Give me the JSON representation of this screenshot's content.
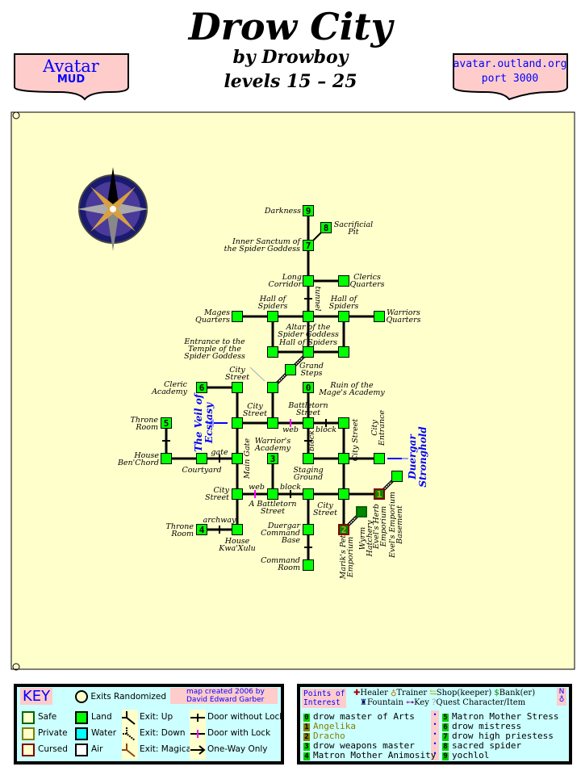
{
  "header": {
    "title": "Drow City",
    "author": "by Drowboy",
    "levels": "levels 15 – 25",
    "left_badge": {
      "line1": "Avatar",
      "line2": "MUD"
    },
    "right_badge": {
      "line1": "avatar.outland.org",
      "line2": "port 3000"
    }
  },
  "colors": {
    "parchment": "#ffffcc",
    "land": "#00ff00",
    "water": "#00ffff",
    "key_bg": "#ccffff",
    "badge_bg": "#ffcccc",
    "link": "#0000ff",
    "lock": "#ff00ff"
  },
  "map": {
    "rooms": [
      {
        "id": "darkness",
        "number": "9"
      },
      {
        "id": "sacrificial-pit",
        "number": "8"
      },
      {
        "id": "inner-sanctum",
        "number": "7"
      },
      {
        "id": "long-corridor"
      },
      {
        "id": "clerics-quarters"
      },
      {
        "id": "mages-quarters"
      },
      {
        "id": "hall-of-spiders-left"
      },
      {
        "id": "altar"
      },
      {
        "id": "hall-of-spiders-right"
      },
      {
        "id": "warriors-quarters"
      },
      {
        "id": "hall-sw"
      },
      {
        "id": "hall-of-spiders-center"
      },
      {
        "id": "hall-se"
      },
      {
        "id": "grand-steps"
      },
      {
        "id": "temple-entrance"
      },
      {
        "id": "ruin",
        "number": "0"
      },
      {
        "id": "cleric-academy",
        "number": "6"
      },
      {
        "id": "city-street-n"
      },
      {
        "id": "throne-room-5",
        "number": "5"
      },
      {
        "id": "city-street-w"
      },
      {
        "id": "city-street-c"
      },
      {
        "id": "battletorn-street"
      },
      {
        "id": "city-street-e"
      },
      {
        "id": "house-benchord"
      },
      {
        "id": "courtyard"
      },
      {
        "id": "main-gate"
      },
      {
        "id": "warriors-academy",
        "number": "3"
      },
      {
        "id": "staging-ground"
      },
      {
        "id": "city-street-east"
      },
      {
        "id": "city-entrance"
      },
      {
        "id": "evels-basement"
      },
      {
        "id": "city-street-sw"
      },
      {
        "id": "a-battletorn-street"
      },
      {
        "id": "street-s1"
      },
      {
        "id": "street-s2"
      },
      {
        "id": "evels-herb",
        "number": "1",
        "zone": "cursed"
      },
      {
        "id": "wyrm-hatchery",
        "zone": "safe"
      },
      {
        "id": "mariks-pet",
        "number": "2",
        "zone": "cursed"
      },
      {
        "id": "throne-room-4",
        "number": "4"
      },
      {
        "id": "house-kwaxulu"
      },
      {
        "id": "duergar-command-base"
      },
      {
        "id": "command-room"
      }
    ],
    "labels": [
      {
        "id": "darkness",
        "lines": [
          "Darkness"
        ]
      },
      {
        "id": "sacrificial-pit",
        "lines": [
          "Sacrificial",
          "Pit"
        ]
      },
      {
        "id": "inner-sanctum",
        "lines": [
          "Inner Sanctum of",
          "the Spider Goddess"
        ]
      },
      {
        "id": "long-corridor",
        "lines": [
          "Long",
          "Corridor"
        ]
      },
      {
        "id": "clerics-quarters",
        "lines": [
          "Clerics",
          "Quarters"
        ]
      },
      {
        "id": "hall-l",
        "lines": [
          "Hall of",
          "Spiders"
        ]
      },
      {
        "id": "hall-r",
        "lines": [
          "Hall of",
          "Spiders"
        ]
      },
      {
        "id": "mages-quarters",
        "lines": [
          "Mages",
          "Quarters"
        ]
      },
      {
        "id": "warriors-quarters",
        "lines": [
          "Warriors",
          "Quarters"
        ]
      },
      {
        "id": "altar",
        "lines": [
          "Altar of the",
          "Spider Goddess"
        ]
      },
      {
        "id": "hall-c",
        "lines": [
          "Hall of Spiders"
        ]
      },
      {
        "id": "temple-entrance",
        "lines": [
          "Entrance to the",
          "Temple of the",
          "Spider Goddess"
        ]
      },
      {
        "id": "grand-steps",
        "lines": [
          "Grand",
          "Steps"
        ]
      },
      {
        "id": "ruin",
        "lines": [
          "Ruin of the",
          "Mage's Academy"
        ]
      },
      {
        "id": "city-street-n",
        "lines": [
          "City",
          "Street"
        ]
      },
      {
        "id": "cleric-academy",
        "lines": [
          "Cleric",
          "Academy"
        ]
      },
      {
        "id": "city-street-c",
        "lines": [
          "City",
          "Street"
        ]
      },
      {
        "id": "battletorn-street",
        "lines": [
          "Battletorn",
          "Street"
        ]
      },
      {
        "id": "throne-room-5",
        "lines": [
          "Throne",
          "Room"
        ]
      },
      {
        "id": "web-1",
        "lines": [
          "web"
        ]
      },
      {
        "id": "block-1",
        "lines": [
          "block"
        ]
      },
      {
        "id": "warriors-academy",
        "lines": [
          "Warrior's",
          "Academy"
        ]
      },
      {
        "id": "gate",
        "lines": [
          "gate"
        ]
      },
      {
        "id": "house-benchord",
        "lines": [
          "House",
          "Ben'Chord"
        ]
      },
      {
        "id": "courtyard",
        "lines": [
          "Courtyard"
        ]
      },
      {
        "id": "staging-ground",
        "lines": [
          "Staging",
          "Ground"
        ]
      },
      {
        "id": "city-street-sw",
        "lines": [
          "City",
          "Street"
        ]
      },
      {
        "id": "web-2",
        "lines": [
          "web"
        ]
      },
      {
        "id": "block-2",
        "lines": [
          "block"
        ]
      },
      {
        "id": "a-battletorn-street",
        "lines": [
          "A Battletorn",
          "Street"
        ]
      },
      {
        "id": "city-street-s",
        "lines": [
          "City",
          "Street"
        ]
      },
      {
        "id": "throne-room-4",
        "lines": [
          "Throne",
          "Room"
        ]
      },
      {
        "id": "archway",
        "lines": [
          "archway"
        ]
      },
      {
        "id": "house-kwaxulu",
        "lines": [
          "House",
          "Kwa'Xulu"
        ]
      },
      {
        "id": "duergar-command-base",
        "lines": [
          "Duergar",
          "Command",
          "Base"
        ]
      },
      {
        "id": "command-room",
        "lines": [
          "Command",
          "Room"
        ]
      },
      {
        "id": "tunnel",
        "lines": [
          "tunnel"
        ]
      },
      {
        "id": "block-v",
        "lines": [
          "block"
        ]
      },
      {
        "id": "main-gate",
        "lines": [
          "Main Gate"
        ]
      },
      {
        "id": "city-street-v",
        "lines": [
          "City Street"
        ]
      },
      {
        "id": "city-entrance",
        "lines": [
          "City",
          "Entrance"
        ]
      },
      {
        "id": "mariks-pet",
        "lines": [
          "Marik's Pet",
          "Emporium"
        ]
      },
      {
        "id": "wyrm-hatchery",
        "lines": [
          "Wyrm",
          "Hatchery"
        ]
      },
      {
        "id": "evels-herb",
        "lines": [
          "Evel's Herb",
          "Emporium"
        ]
      },
      {
        "id": "evels-basement",
        "lines": [
          "Evel's Emporium",
          "Basement"
        ]
      },
      {
        "id": "veil",
        "lines": [
          "The Veil of",
          "Ecstasy"
        ]
      },
      {
        "id": "duergar-stronghold",
        "lines": [
          "Duergar",
          "Stronghold"
        ]
      }
    ]
  },
  "key": {
    "title": "KEY",
    "exits_randomized": "Exits Randomized",
    "credit": [
      "map created 2006 by",
      "David Edward Garber"
    ],
    "zones": [
      "Safe",
      "Private",
      "Cursed"
    ],
    "terrain": [
      "Land",
      "Water",
      "Air"
    ],
    "exits": [
      "Exit: Up",
      "Exit: Down",
      "Exit: Magical"
    ],
    "doors": [
      "Door without Lock",
      "Door with Lock",
      "One-Way Only"
    ]
  },
  "poi": {
    "title": [
      "Points of",
      "Interest"
    ],
    "legend": [
      "Healer",
      "Trainer",
      "Shop(keeper)",
      "Bank(er)",
      "Fountain",
      "Key",
      "Quest Character/Item"
    ],
    "compass_label": "N",
    "items": [
      {
        "n": "0",
        "name": "drow master of Arts"
      },
      {
        "n": "1",
        "name": "Angelika",
        "muted": true
      },
      {
        "n": "2",
        "name": "Dracho",
        "muted": true
      },
      {
        "n": "3",
        "name": "drow weapons master"
      },
      {
        "n": "4",
        "name": "Matron Mother Animosity"
      },
      {
        "n": "5",
        "name": "Matron Mother Stress"
      },
      {
        "n": "6",
        "name": "drow mistress"
      },
      {
        "n": "7",
        "name": "drow high priestess"
      },
      {
        "n": "8",
        "name": "sacred spider"
      },
      {
        "n": "9",
        "name": "yochlol"
      }
    ]
  }
}
